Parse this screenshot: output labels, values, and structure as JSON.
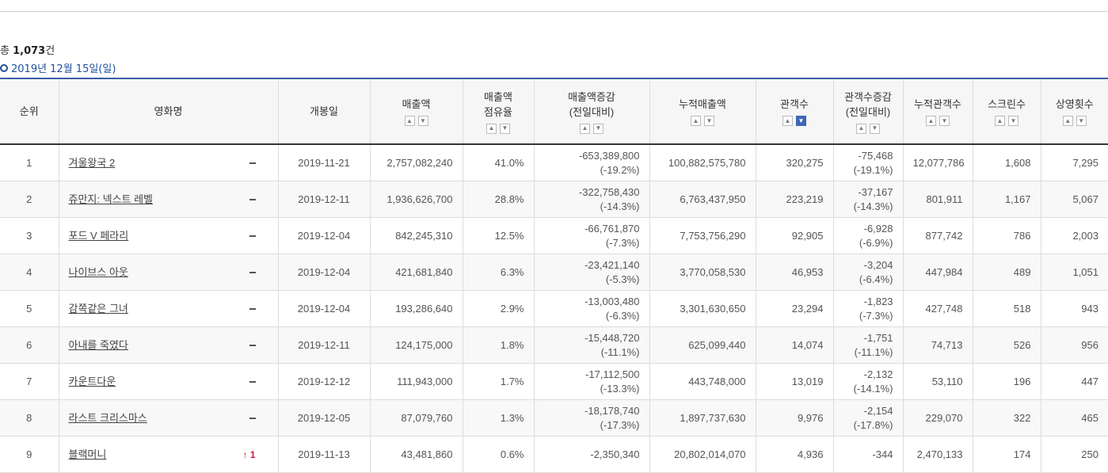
{
  "summary": {
    "prefix": "총 ",
    "count": "1,073",
    "suffix": "건"
  },
  "date_label": "2019년 12월 15일(일)",
  "headers": {
    "rank": "순위",
    "title": "영화명",
    "open_date": "개봉일",
    "sales": "매출액",
    "share_1": "매출액",
    "share_2": "점유율",
    "sales_change_1": "매출액증감",
    "sales_change_2": "(전일대비)",
    "cum_sales": "누적매출액",
    "audience": "관객수",
    "aud_change_1": "관객수증감",
    "aud_change_2": "(전일대비)",
    "cum_audience": "누적관객수",
    "screens": "스크린수",
    "shows": "상영횟수"
  },
  "rows": [
    {
      "rank": "1",
      "title": "겨울왕국 2",
      "rank_change": "",
      "open": "2019-11-21",
      "sales": "2,757,082,240",
      "share": "41.0%",
      "sales_diff": "-653,389,800",
      "sales_pct": "(-19.2%)",
      "cum_sales": "100,882,575,780",
      "aud": "320,275",
      "aud_diff": "-75,468",
      "aud_pct": "(-19.1%)",
      "cum_aud": "12,077,786",
      "screens": "1,608",
      "shows": "7,295"
    },
    {
      "rank": "2",
      "title": "쥬만지: 넥스트 레벨",
      "rank_change": "",
      "open": "2019-12-11",
      "sales": "1,936,626,700",
      "share": "28.8%",
      "sales_diff": "-322,758,430",
      "sales_pct": "(-14.3%)",
      "cum_sales": "6,763,437,950",
      "aud": "223,219",
      "aud_diff": "-37,167",
      "aud_pct": "(-14.3%)",
      "cum_aud": "801,911",
      "screens": "1,167",
      "shows": "5,067"
    },
    {
      "rank": "3",
      "title": "포드 V 페라리",
      "rank_change": "",
      "open": "2019-12-04",
      "sales": "842,245,310",
      "share": "12.5%",
      "sales_diff": "-66,761,870",
      "sales_pct": "(-7.3%)",
      "cum_sales": "7,753,756,290",
      "aud": "92,905",
      "aud_diff": "-6,928",
      "aud_pct": "(-6.9%)",
      "cum_aud": "877,742",
      "screens": "786",
      "shows": "2,003"
    },
    {
      "rank": "4",
      "title": "나이브스 아웃",
      "rank_change": "",
      "open": "2019-12-04",
      "sales": "421,681,840",
      "share": "6.3%",
      "sales_diff": "-23,421,140",
      "sales_pct": "(-5.3%)",
      "cum_sales": "3,770,058,530",
      "aud": "46,953",
      "aud_diff": "-3,204",
      "aud_pct": "(-6.4%)",
      "cum_aud": "447,984",
      "screens": "489",
      "shows": "1,051"
    },
    {
      "rank": "5",
      "title": "감쪽같은 그녀",
      "rank_change": "",
      "open": "2019-12-04",
      "sales": "193,286,640",
      "share": "2.9%",
      "sales_diff": "-13,003,480",
      "sales_pct": "(-6.3%)",
      "cum_sales": "3,301,630,650",
      "aud": "23,294",
      "aud_diff": "-1,823",
      "aud_pct": "(-7.3%)",
      "cum_aud": "427,748",
      "screens": "518",
      "shows": "943"
    },
    {
      "rank": "6",
      "title": "아내를 죽였다",
      "rank_change": "",
      "open": "2019-12-11",
      "sales": "124,175,000",
      "share": "1.8%",
      "sales_diff": "-15,448,720",
      "sales_pct": "(-11.1%)",
      "cum_sales": "625,099,440",
      "aud": "14,074",
      "aud_diff": "-1,751",
      "aud_pct": "(-11.1%)",
      "cum_aud": "74,713",
      "screens": "526",
      "shows": "956"
    },
    {
      "rank": "7",
      "title": "카운트다운",
      "rank_change": "",
      "open": "2019-12-12",
      "sales": "111,943,000",
      "share": "1.7%",
      "sales_diff": "-17,112,500",
      "sales_pct": "(-13.3%)",
      "cum_sales": "443,748,000",
      "aud": "13,019",
      "aud_diff": "-2,132",
      "aud_pct": "(-14.1%)",
      "cum_aud": "53,110",
      "screens": "196",
      "shows": "447"
    },
    {
      "rank": "8",
      "title": "라스트 크리스마스",
      "rank_change": "",
      "open": "2019-12-05",
      "sales": "87,079,760",
      "share": "1.3%",
      "sales_diff": "-18,178,740",
      "sales_pct": "(-17.3%)",
      "cum_sales": "1,897,737,630",
      "aud": "9,976",
      "aud_diff": "-2,154",
      "aud_pct": "(-17.8%)",
      "cum_aud": "229,070",
      "screens": "322",
      "shows": "465"
    },
    {
      "rank": "9",
      "title": "블랙머니",
      "rank_change": "↑ 1",
      "open": "2019-11-13",
      "sales": "43,481,860",
      "share": "0.6%",
      "sales_diff": "-2,350,340",
      "sales_pct": "",
      "cum_sales": "20,802,014,070",
      "aud": "4,936",
      "aud_diff": "-344",
      "aud_pct": "",
      "cum_aud": "2,470,133",
      "screens": "174",
      "shows": "250"
    }
  ],
  "sort_active": "audience-desc"
}
